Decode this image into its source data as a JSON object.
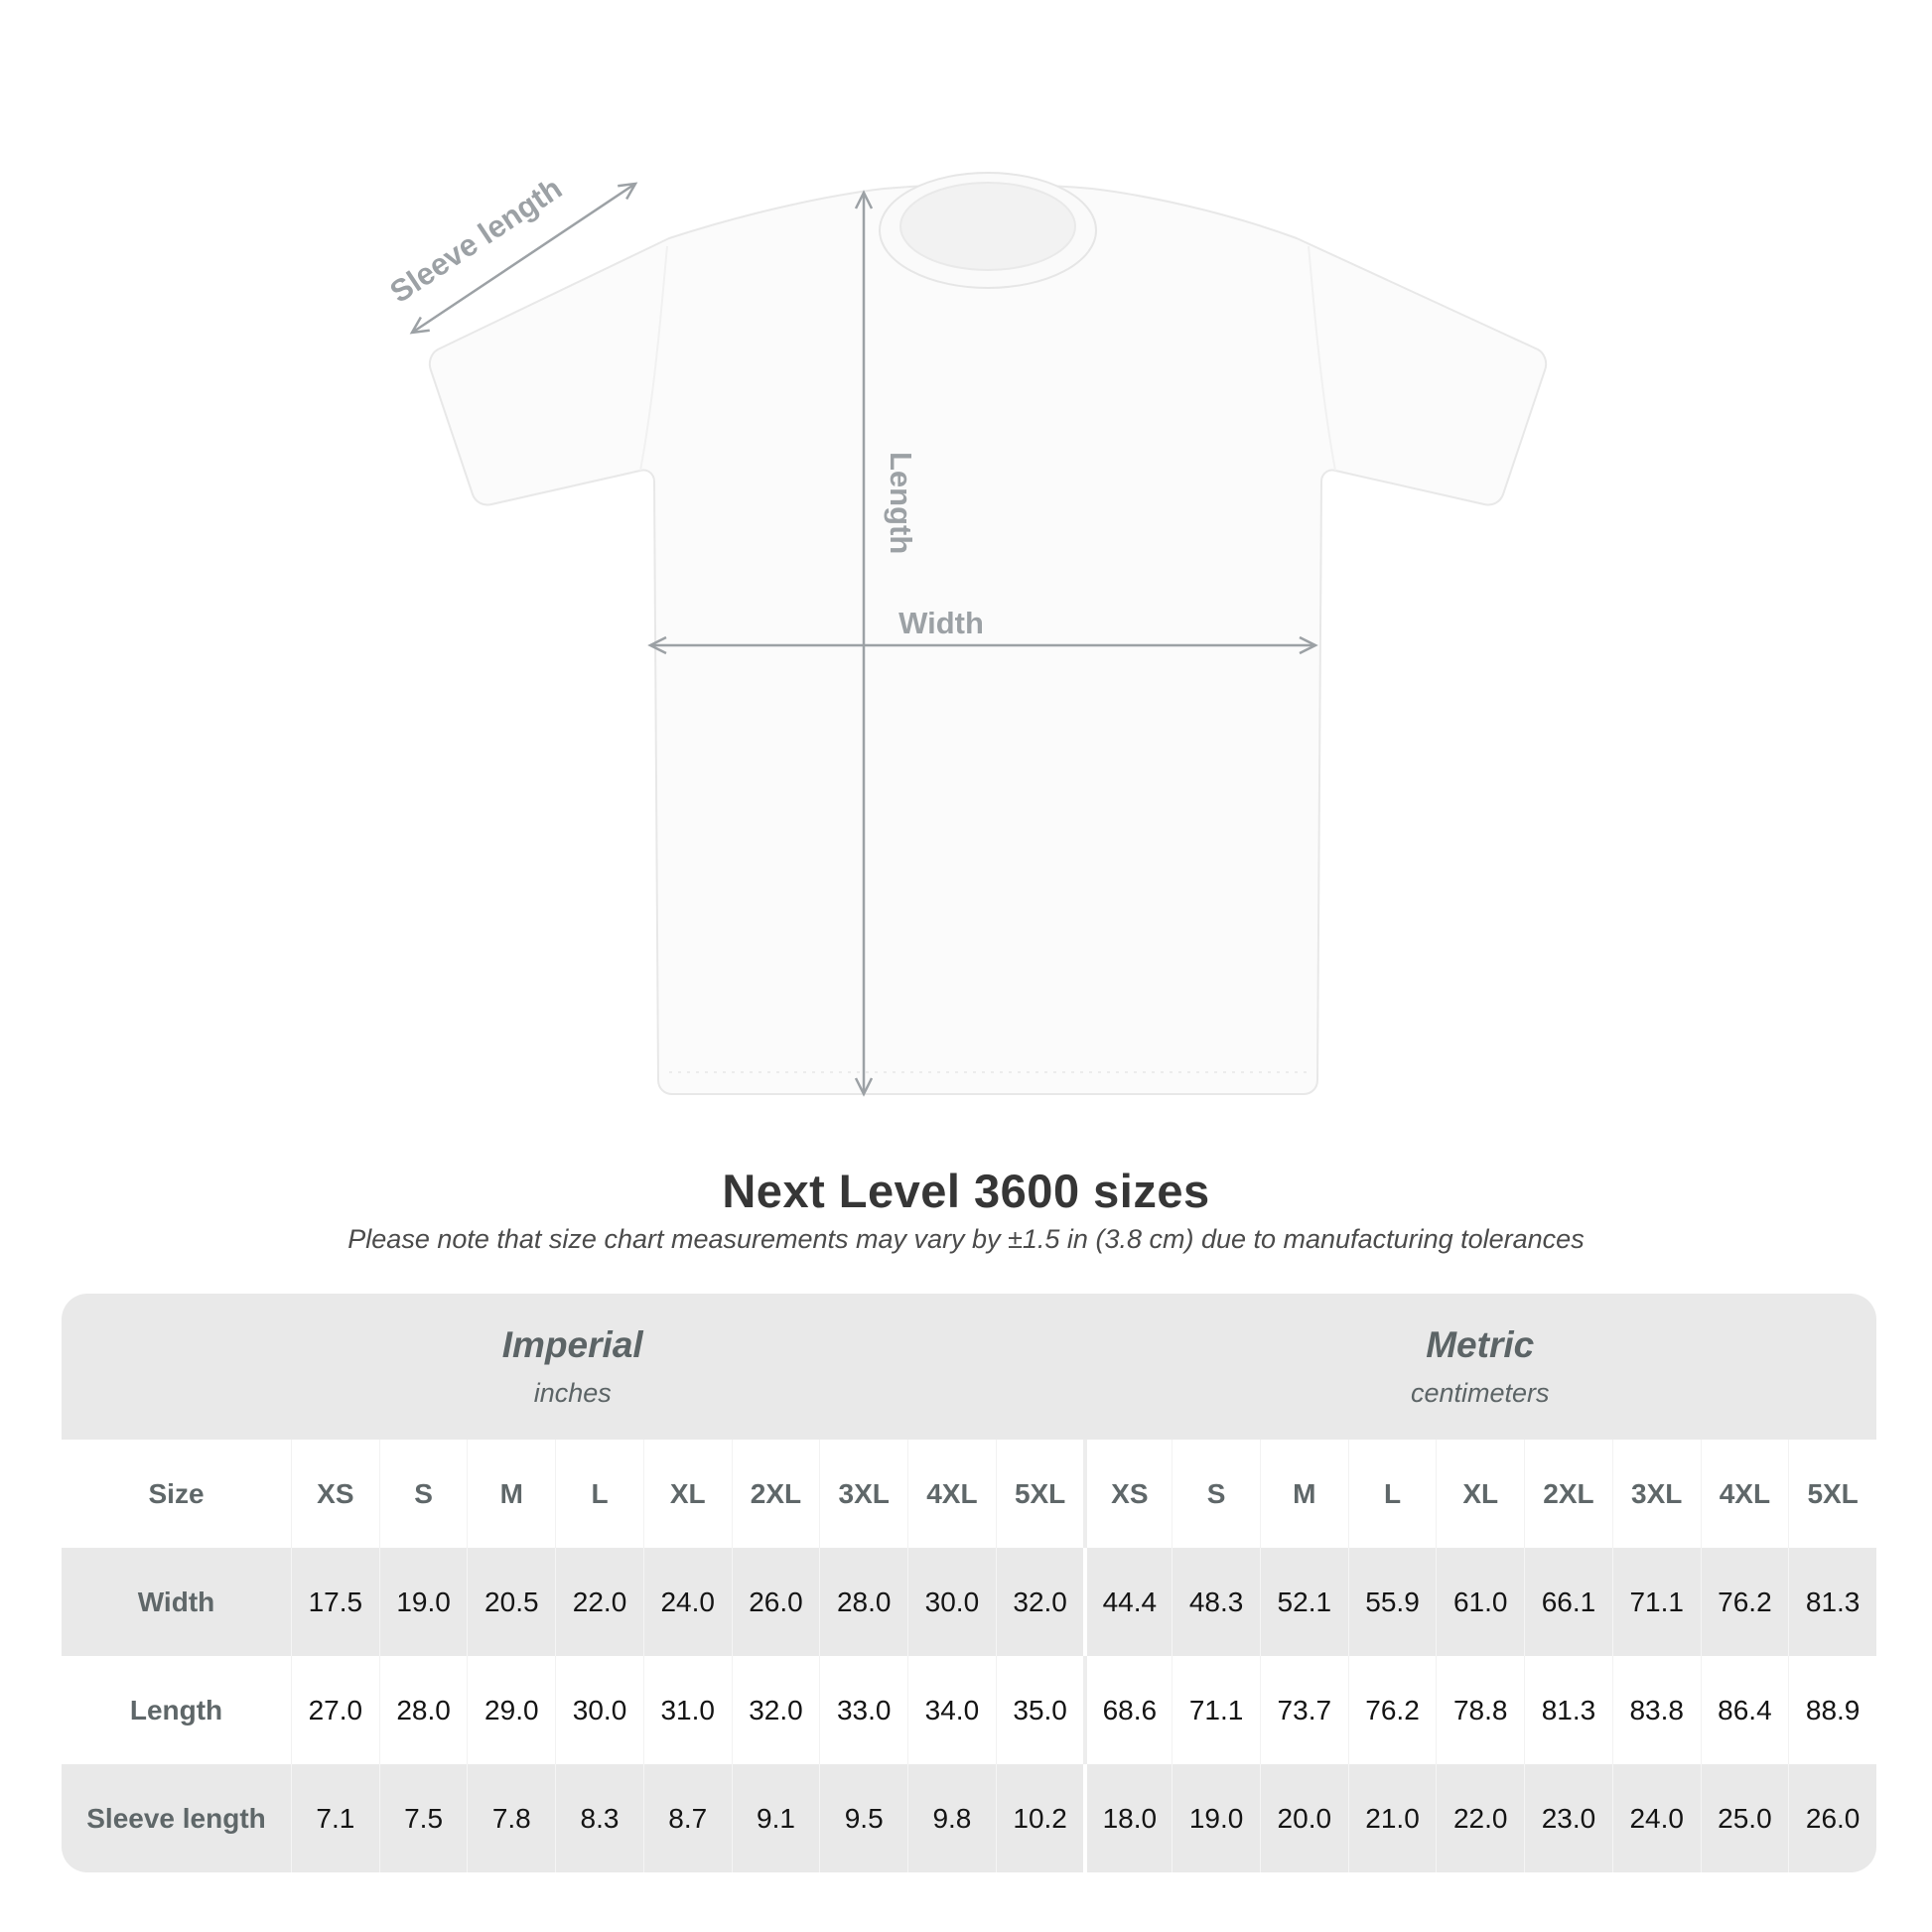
{
  "diagram": {
    "sleeve_label": "Sleeve length",
    "length_label": "Length",
    "width_label": "Width"
  },
  "title": "Next Level 3600 sizes",
  "subtitle": "Please note that size chart measurements may vary by ±1.5 in (3.8 cm) due to manufacturing tolerances",
  "table": {
    "unit_groups": [
      {
        "name": "Imperial",
        "unit": "inches"
      },
      {
        "name": "Metric",
        "unit": "centimeters"
      }
    ],
    "size_header_label": "Size",
    "size_columns": [
      "XS",
      "S",
      "M",
      "L",
      "XL",
      "2XL",
      "3XL",
      "4XL",
      "5XL",
      "XS",
      "S",
      "M",
      "L",
      "XL",
      "2XL",
      "3XL",
      "4XL",
      "5XL"
    ],
    "rows": [
      {
        "label": "Width",
        "values": [
          "17.5",
          "19.0",
          "20.5",
          "22.0",
          "24.0",
          "26.0",
          "28.0",
          "30.0",
          "32.0",
          "44.4",
          "48.3",
          "52.1",
          "55.9",
          "61.0",
          "66.1",
          "71.1",
          "76.2",
          "81.3"
        ]
      },
      {
        "label": "Length",
        "values": [
          "27.0",
          "28.0",
          "29.0",
          "30.0",
          "31.0",
          "32.0",
          "33.0",
          "34.0",
          "35.0",
          "68.6",
          "71.1",
          "73.7",
          "76.2",
          "78.8",
          "81.3",
          "83.8",
          "86.4",
          "88.9"
        ]
      },
      {
        "label": "Sleeve length",
        "values": [
          "7.1",
          "7.5",
          "7.8",
          "8.3",
          "8.7",
          "9.1",
          "9.5",
          "9.8",
          "10.2",
          "18.0",
          "19.0",
          "20.0",
          "21.0",
          "22.0",
          "23.0",
          "24.0",
          "25.0",
          "26.0"
        ]
      }
    ]
  },
  "colors": {
    "table_band_gray": "#e9e9e9",
    "arrow_gray": "#9ca1a5",
    "header_text_gray": "#5c6466",
    "data_text": "#141414",
    "title_text": "#363636"
  }
}
